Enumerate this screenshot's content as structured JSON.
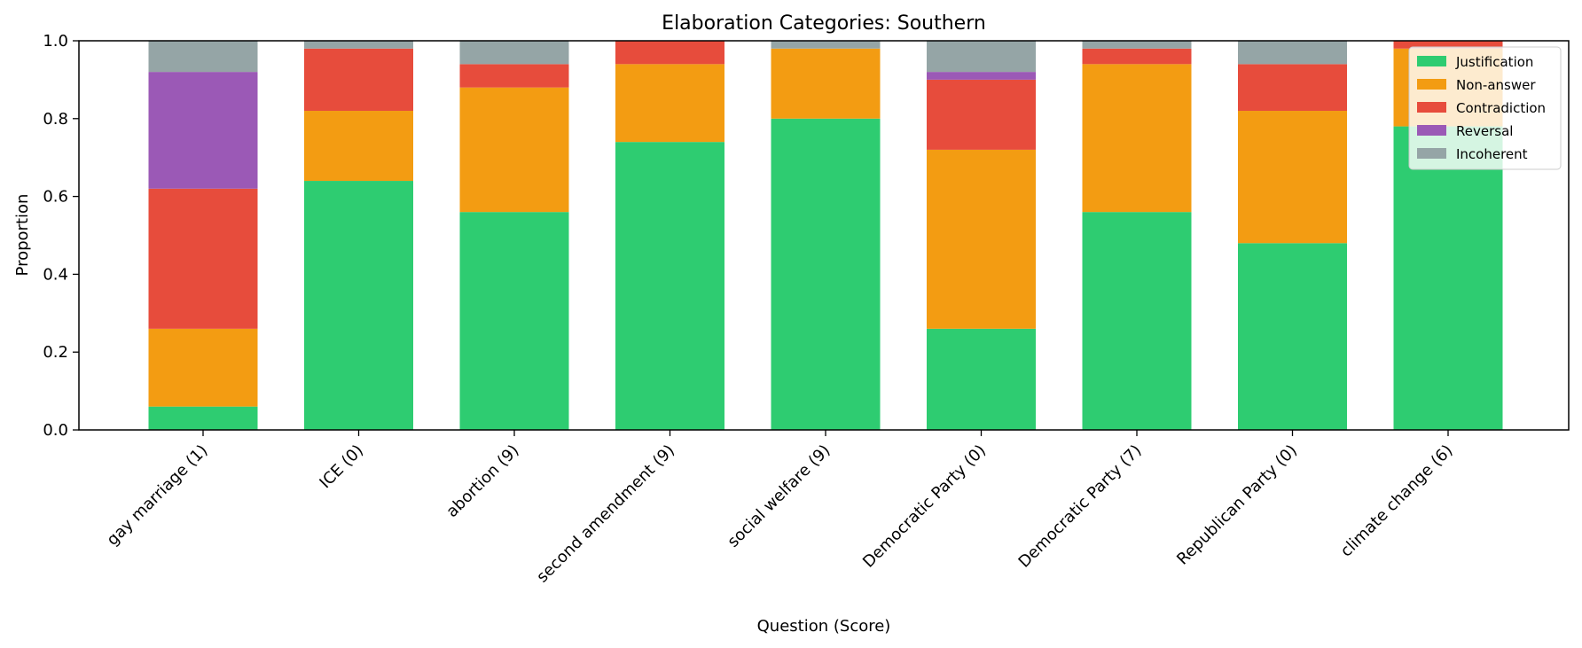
{
  "chart_data": {
    "type": "bar",
    "stacked": true,
    "title": "Elaboration Categories: Southern",
    "xlabel": "Question (Score)",
    "ylabel": "Proportion",
    "ylim": [
      0,
      1
    ],
    "yticks": [
      "0.0",
      "0.2",
      "0.4",
      "0.6",
      "0.8",
      "1.0"
    ],
    "grid": false,
    "legend_position": "top-right",
    "categories": [
      "gay marriage (1)",
      "ICE (0)",
      "abortion (9)",
      "second amendment (9)",
      "social welfare (9)",
      "Democratic Party (0)",
      "Democratic Party (7)",
      "Republican Party (0)",
      "climate change (6)"
    ],
    "series": [
      {
        "name": "Justification",
        "color": "#2ecc71",
        "values": [
          0.06,
          0.64,
          0.56,
          0.74,
          0.8,
          0.26,
          0.56,
          0.48,
          0.78
        ]
      },
      {
        "name": "Non-answer",
        "color": "#f39c12",
        "values": [
          0.2,
          0.18,
          0.32,
          0.2,
          0.18,
          0.46,
          0.38,
          0.34,
          0.2
        ]
      },
      {
        "name": "Contradiction",
        "color": "#e74c3c",
        "values": [
          0.36,
          0.16,
          0.06,
          0.06,
          0.0,
          0.18,
          0.04,
          0.12,
          0.02
        ]
      },
      {
        "name": "Reversal",
        "color": "#9b59b6",
        "values": [
          0.3,
          0.0,
          0.0,
          0.0,
          0.0,
          0.02,
          0.0,
          0.0,
          0.0
        ]
      },
      {
        "name": "Incoherent",
        "color": "#95a5a6",
        "values": [
          0.08,
          0.02,
          0.06,
          0.0,
          0.02,
          0.08,
          0.02,
          0.06,
          0.0
        ]
      }
    ]
  }
}
